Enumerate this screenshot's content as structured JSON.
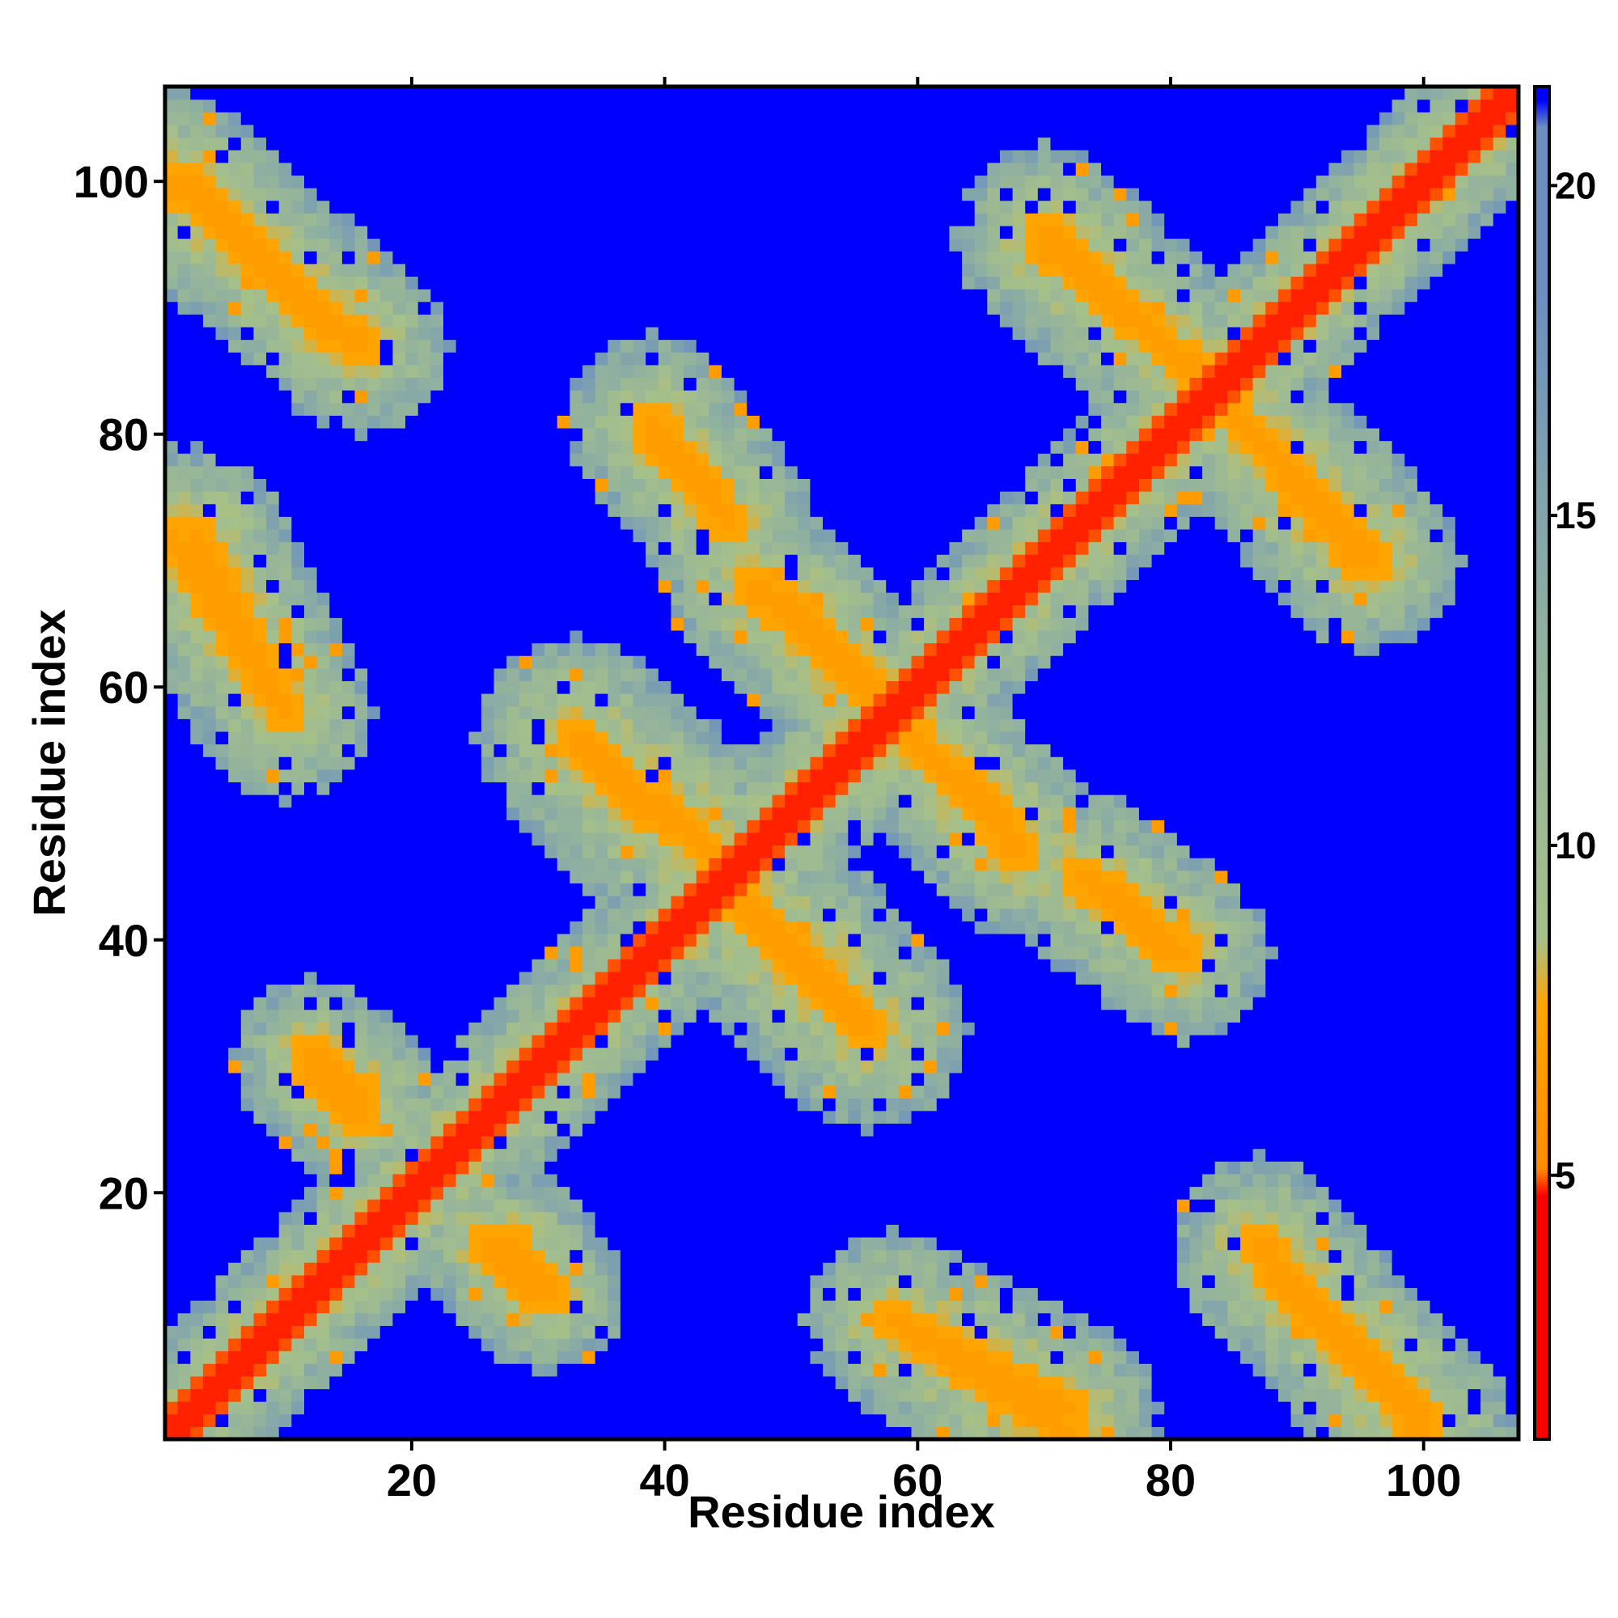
{
  "chart_data": {
    "type": "heatmap",
    "title": "",
    "xlabel": "Residue index",
    "ylabel": "Residue index",
    "n_residues": 107,
    "xlim": [
      1,
      107
    ],
    "ylim": [
      1,
      107
    ],
    "xticks": [
      20,
      40,
      60,
      80,
      100
    ],
    "yticks": [
      20,
      40,
      60,
      80,
      100
    ],
    "colorbar": {
      "ticks": [
        5,
        10,
        15,
        20
      ],
      "range": [
        1,
        21.5
      ],
      "colors": [
        "#ff0000",
        "#ff8c00",
        "#ffa500",
        "#a6c08a",
        "#8fb0a0",
        "#6a8fc0",
        "#0000ff"
      ]
    },
    "value_scale": {
      "min": 0,
      "max": 21.5
    },
    "diagonal_value": 1,
    "background_value": 21.5,
    "contact_bands": [
      {
        "from": [
          1,
          1
        ],
        "to": [
          107,
          107
        ],
        "core_value": 1,
        "halo_width": 6
      },
      {
        "from": [
          1,
          100
        ],
        "to": [
          16,
          87
        ],
        "core_value": 7,
        "halo_width": 7
      },
      {
        "from": [
          1,
          72
        ],
        "to": [
          10,
          58
        ],
        "core_value": 7,
        "halo_width": 7
      },
      {
        "from": [
          34,
          55
        ],
        "to": [
          46,
          45
        ],
        "core_value": 7,
        "halo_width": 8
      },
      {
        "from": [
          45,
          44
        ],
        "to": [
          56,
          33
        ],
        "core_value": 7,
        "halo_width": 8
      },
      {
        "from": [
          49,
          67
        ],
        "to": [
          58,
          58
        ],
        "core_value": 7,
        "halo_width": 7
      },
      {
        "from": [
          58,
          58
        ],
        "to": [
          68,
          47
        ],
        "core_value": 7,
        "halo_width": 7
      },
      {
        "from": [
          39,
          81
        ],
        "to": [
          45,
          73
        ],
        "core_value": 7,
        "halo_width": 7
      },
      {
        "from": [
          70,
          95
        ],
        "to": [
          82,
          85
        ],
        "core_value": 7,
        "halo_width": 7
      },
      {
        "from": [
          82,
          85
        ],
        "to": [
          96,
          70
        ],
        "core_value": 7,
        "halo_width": 7
      },
      {
        "from": [
          75,
          44
        ],
        "to": [
          80,
          39
        ],
        "core_value": 7,
        "halo_width": 6
      },
      {
        "from": [
          58,
          10
        ],
        "to": [
          72,
          3
        ],
        "core_value": 7,
        "halo_width": 7
      },
      {
        "from": [
          88,
          14
        ],
        "to": [
          100,
          2
        ],
        "core_value": 7,
        "halo_width": 7
      },
      {
        "from": [
          12,
          31
        ],
        "to": [
          16,
          28
        ],
        "core_value": 7,
        "halo_width": 6
      },
      {
        "from": [
          26,
          16
        ],
        "to": [
          30,
          12
        ],
        "core_value": 7,
        "halo_width": 6
      }
    ]
  }
}
